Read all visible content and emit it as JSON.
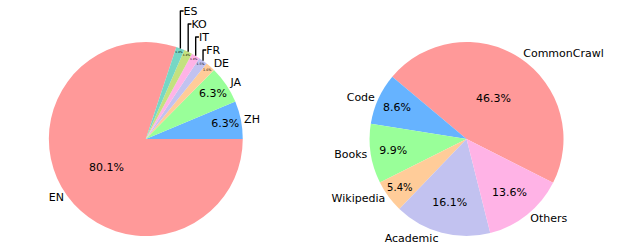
{
  "chart_data": [
    {
      "type": "pie",
      "categories": [
        "EN",
        "ZH",
        "JA",
        "DE",
        "FR",
        "IT",
        "KO",
        "ES"
      ],
      "values": [
        80.1,
        6.3,
        6.3,
        1.6,
        1.5,
        1.4,
        1.4,
        1.4
      ],
      "value_labels": [
        "80.1%",
        "6.3%",
        "6.3%",
        "1.6%",
        "1.5%",
        "1.4%",
        "1.4%",
        "1.4%"
      ],
      "data_labels": true,
      "colors": [
        "#ff9999",
        "#66b3ff",
        "#99ff99",
        "#ffcc99",
        "#c2c2f0",
        "#ffb3e6",
        "#c4e17f",
        "#76d7c4"
      ]
    },
    {
      "type": "pie",
      "categories": [
        "CommonCrawl",
        "Code",
        "Books",
        "Wikipedia",
        "Academic",
        "Others"
      ],
      "values": [
        46.3,
        8.6,
        9.9,
        5.4,
        16.1,
        13.6
      ],
      "value_labels": [
        "46.3%",
        "8.6%",
        "9.9%",
        "5.4%",
        "16.1%",
        "13.6%"
      ],
      "data_labels": true,
      "colors": [
        "#ff9999",
        "#66b3ff",
        "#99ff99",
        "#ffcc99",
        "#c2c2f0",
        "#ffb3e6"
      ]
    }
  ]
}
